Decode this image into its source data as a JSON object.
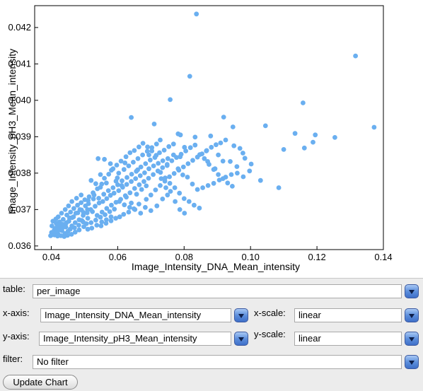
{
  "chart_data": {
    "type": "scatter",
    "title": "",
    "xlabel": "Image_Intensity_DNA_Mean_intensity",
    "ylabel": "Image_Intensity_pH3_Mean_intensity",
    "xlim": [
      0.035,
      0.14
    ],
    "ylim": [
      0.0359,
      0.0426
    ],
    "xticks": [
      0.04,
      0.06,
      0.08,
      0.1,
      0.12,
      0.14
    ],
    "xtick_labels": [
      "0.04",
      "0.06",
      "0.08",
      "0.10",
      "0.12",
      "0.14"
    ],
    "yticks": [
      0.036,
      0.037,
      0.038,
      0.039,
      0.04,
      0.041,
      0.042
    ],
    "ytick_labels": [
      "0.036",
      "0.037",
      "0.038",
      "0.039",
      "0.040",
      "0.041",
      "0.042"
    ],
    "grid": false,
    "point_color": "#6aaff0",
    "points": [
      [
        0.0837,
        0.04237
      ],
      [
        0.1316,
        0.04122
      ],
      [
        0.0817,
        0.04066
      ],
      [
        0.0758,
        0.04002
      ],
      [
        0.1158,
        0.03993
      ],
      [
        0.1372,
        0.03926
      ],
      [
        0.1254,
        0.03898
      ],
      [
        0.1045,
        0.0393
      ],
      [
        0.0641,
        0.03953
      ],
      [
        0.071,
        0.03935
      ],
      [
        0.0782,
        0.03908
      ],
      [
        0.0789,
        0.03905
      ],
      [
        0.088,
        0.03902
      ],
      [
        0.0919,
        0.03954
      ],
      [
        0.0947,
        0.03927
      ],
      [
        0.11,
        0.03865
      ],
      [
        0.1134,
        0.03909
      ],
      [
        0.1195,
        0.03905
      ],
      [
        0.1162,
        0.03869
      ],
      [
        0.1188,
        0.03885
      ],
      [
        0.1085,
        0.0376
      ],
      [
        0.103,
        0.0378
      ],
      [
        0.0977,
        0.03855
      ],
      [
        0.0939,
        0.03832
      ],
      [
        0.0903,
        0.0385
      ],
      [
        0.0867,
        0.03861
      ],
      [
        0.0833,
        0.03899
      ],
      [
        0.0801,
        0.03871
      ],
      [
        0.0788,
        0.03845
      ],
      [
        0.0749,
        0.03821
      ],
      [
        0.0728,
        0.03891
      ],
      [
        0.0694,
        0.0385
      ],
      [
        0.066,
        0.03809
      ],
      [
        0.0622,
        0.03828
      ],
      [
        0.0599,
        0.03787
      ],
      [
        0.0581,
        0.03808
      ],
      [
        0.0566,
        0.03773
      ],
      [
        0.0548,
        0.03761
      ],
      [
        0.0529,
        0.0374
      ],
      [
        0.0511,
        0.03725
      ],
      [
        0.0503,
        0.0371
      ],
      [
        0.0491,
        0.03699
      ],
      [
        0.048,
        0.03691
      ],
      [
        0.0467,
        0.0368
      ],
      [
        0.0455,
        0.03677
      ],
      [
        0.0446,
        0.03664
      ],
      [
        0.0437,
        0.03659
      ],
      [
        0.0428,
        0.03652
      ],
      [
        0.0418,
        0.03647
      ],
      [
        0.0409,
        0.03643
      ],
      [
        0.0401,
        0.03637
      ],
      [
        0.0398,
        0.03628
      ],
      [
        0.0405,
        0.03631
      ],
      [
        0.0411,
        0.03648
      ],
      [
        0.042,
        0.03633
      ],
      [
        0.0432,
        0.03642
      ],
      [
        0.0441,
        0.03634
      ],
      [
        0.045,
        0.0364
      ],
      [
        0.0462,
        0.03655
      ],
      [
        0.0472,
        0.03664
      ],
      [
        0.0484,
        0.03672
      ],
      [
        0.0496,
        0.03684
      ],
      [
        0.0508,
        0.03691
      ],
      [
        0.0519,
        0.037
      ],
      [
        0.0532,
        0.03709
      ],
      [
        0.0544,
        0.03718
      ],
      [
        0.0555,
        0.03722
      ],
      [
        0.0567,
        0.0373
      ],
      [
        0.0578,
        0.03739
      ],
      [
        0.0589,
        0.03745
      ],
      [
        0.0603,
        0.03752
      ],
      [
        0.0615,
        0.03761
      ],
      [
        0.0627,
        0.03769
      ],
      [
        0.0641,
        0.03777
      ],
      [
        0.0654,
        0.03785
      ],
      [
        0.0668,
        0.03793
      ],
      [
        0.0681,
        0.03801
      ],
      [
        0.0694,
        0.03812
      ],
      [
        0.0708,
        0.0382
      ],
      [
        0.0722,
        0.03827
      ],
      [
        0.0736,
        0.03834
      ],
      [
        0.0751,
        0.0384
      ],
      [
        0.0768,
        0.0385
      ],
      [
        0.0782,
        0.03812
      ],
      [
        0.0796,
        0.03795
      ],
      [
        0.081,
        0.03789
      ],
      [
        0.0825,
        0.0377
      ],
      [
        0.084,
        0.03755
      ],
      [
        0.0856,
        0.0376
      ],
      [
        0.0872,
        0.03766
      ],
      [
        0.0889,
        0.03772
      ],
      [
        0.0906,
        0.03781
      ],
      [
        0.0925,
        0.03789
      ],
      [
        0.0942,
        0.03796
      ],
      [
        0.096,
        0.038
      ],
      [
        0.0978,
        0.0379
      ],
      [
        0.0997,
        0.03806
      ],
      [
        0.0871,
        0.03832
      ],
      [
        0.0893,
        0.03812
      ],
      [
        0.0917,
        0.03833
      ],
      [
        0.075,
        0.0374
      ],
      [
        0.0735,
        0.03729
      ],
      [
        0.0718,
        0.0371
      ],
      [
        0.07,
        0.03697
      ],
      [
        0.0683,
        0.03706
      ],
      [
        0.0664,
        0.03715
      ],
      [
        0.0649,
        0.03702
      ],
      [
        0.0633,
        0.03693
      ],
      [
        0.0618,
        0.03687
      ],
      [
        0.0606,
        0.0368
      ],
      [
        0.0594,
        0.03676
      ],
      [
        0.058,
        0.03669
      ],
      [
        0.0565,
        0.03662
      ],
      [
        0.055,
        0.03655
      ],
      [
        0.0537,
        0.03657
      ],
      [
        0.0522,
        0.03649
      ],
      [
        0.051,
        0.03646
      ],
      [
        0.0498,
        0.03653
      ],
      [
        0.0484,
        0.03644
      ],
      [
        0.0472,
        0.03638
      ],
      [
        0.0461,
        0.03632
      ],
      [
        0.0449,
        0.03629
      ],
      [
        0.0439,
        0.03626
      ],
      [
        0.0429,
        0.03628
      ],
      [
        0.0419,
        0.03627
      ],
      [
        0.041,
        0.0363
      ],
      [
        0.0415,
        0.03662
      ],
      [
        0.0425,
        0.03666
      ],
      [
        0.0436,
        0.03673
      ],
      [
        0.0447,
        0.03685
      ],
      [
        0.0458,
        0.03693
      ],
      [
        0.0468,
        0.03703
      ],
      [
        0.0479,
        0.03712
      ],
      [
        0.049,
        0.03719
      ],
      [
        0.0501,
        0.03727
      ],
      [
        0.0514,
        0.03735
      ],
      [
        0.0526,
        0.03746
      ],
      [
        0.0539,
        0.03757
      ],
      [
        0.0552,
        0.0377
      ],
      [
        0.056,
        0.03786
      ],
      [
        0.0573,
        0.03797
      ],
      [
        0.0586,
        0.03812
      ],
      [
        0.0597,
        0.03822
      ],
      [
        0.061,
        0.03833
      ],
      [
        0.0625,
        0.03845
      ],
      [
        0.0637,
        0.03856
      ],
      [
        0.065,
        0.03862
      ],
      [
        0.0664,
        0.03872
      ],
      [
        0.0676,
        0.03882
      ],
      [
        0.069,
        0.03872
      ],
      [
        0.0703,
        0.03861
      ],
      [
        0.0716,
        0.03849
      ],
      [
        0.0729,
        0.03802
      ],
      [
        0.0743,
        0.03787
      ],
      [
        0.0757,
        0.03772
      ],
      [
        0.0772,
        0.0376
      ],
      [
        0.0786,
        0.03745
      ],
      [
        0.08,
        0.0373
      ],
      [
        0.0815,
        0.03722
      ],
      [
        0.083,
        0.03712
      ],
      [
        0.0846,
        0.03704
      ],
      [
        0.0541,
        0.0384
      ],
      [
        0.056,
        0.03838
      ],
      [
        0.0578,
        0.03826
      ],
      [
        0.0595,
        0.03778
      ],
      [
        0.0612,
        0.03766
      ],
      [
        0.0626,
        0.03734
      ],
      [
        0.0641,
        0.03718
      ],
      [
        0.0657,
        0.03742
      ],
      [
        0.0672,
        0.03755
      ],
      [
        0.0686,
        0.03765
      ],
      [
        0.052,
        0.0378
      ],
      [
        0.0534,
        0.03771
      ],
      [
        0.0548,
        0.03796
      ],
      [
        0.049,
        0.0374
      ],
      [
        0.0476,
        0.03731
      ],
      [
        0.0462,
        0.03722
      ],
      [
        0.0452,
        0.0371
      ],
      [
        0.0442,
        0.037
      ],
      [
        0.0431,
        0.0369
      ],
      [
        0.0421,
        0.0368
      ],
      [
        0.0414,
        0.03674
      ],
      [
        0.0405,
        0.03668
      ],
      [
        0.0402,
        0.03655
      ],
      [
        0.0408,
        0.0364
      ],
      [
        0.0553,
        0.03693
      ],
      [
        0.0567,
        0.03703
      ],
      [
        0.0581,
        0.03712
      ],
      [
        0.0595,
        0.0372
      ],
      [
        0.0609,
        0.03728
      ],
      [
        0.0623,
        0.03738
      ],
      [
        0.0637,
        0.03746
      ],
      [
        0.0651,
        0.03758
      ],
      [
        0.0665,
        0.03768
      ],
      [
        0.0679,
        0.03777
      ],
      [
        0.0693,
        0.03786
      ],
      [
        0.0707,
        0.03796
      ],
      [
        0.0721,
        0.03806
      ],
      [
        0.0735,
        0.03815
      ],
      [
        0.0749,
        0.03824
      ],
      [
        0.0763,
        0.03834
      ],
      [
        0.0777,
        0.03843
      ],
      [
        0.0791,
        0.03852
      ],
      [
        0.0805,
        0.03861
      ],
      [
        0.0819,
        0.0387
      ],
      [
        0.0833,
        0.03877
      ],
      [
        0.0847,
        0.03851
      ],
      [
        0.0861,
        0.0384
      ],
      [
        0.0875,
        0.03824
      ],
      [
        0.0889,
        0.0381
      ],
      [
        0.0903,
        0.03796
      ],
      [
        0.0917,
        0.03785
      ],
      [
        0.0931,
        0.03773
      ],
      [
        0.0945,
        0.03764
      ],
      [
        0.0959,
        0.03818
      ],
      [
        0.0983,
        0.03841
      ],
      [
        0.059,
        0.03701
      ],
      [
        0.0576,
        0.03694
      ],
      [
        0.0562,
        0.03686
      ],
      [
        0.0548,
        0.03679
      ],
      [
        0.0534,
        0.03671
      ],
      [
        0.052,
        0.03664
      ],
      [
        0.0506,
        0.03661
      ],
      [
        0.0492,
        0.0367
      ],
      [
        0.0512,
        0.03716
      ],
      [
        0.0527,
        0.03729
      ],
      [
        0.0543,
        0.03731
      ],
      [
        0.0558,
        0.03742
      ],
      [
        0.0572,
        0.03752
      ],
      [
        0.0586,
        0.0376
      ],
      [
        0.06,
        0.03768
      ],
      [
        0.0613,
        0.03779
      ],
      [
        0.0628,
        0.03788
      ],
      [
        0.0642,
        0.03797
      ],
      [
        0.0656,
        0.03805
      ],
      [
        0.067,
        0.03817
      ],
      [
        0.0684,
        0.03826
      ],
      [
        0.0698,
        0.03836
      ],
      [
        0.0712,
        0.03843
      ],
      [
        0.0726,
        0.03856
      ],
      [
        0.074,
        0.03863
      ],
      [
        0.0754,
        0.03873
      ],
      [
        0.0768,
        0.0388
      ],
      [
        0.0509,
        0.037
      ],
      [
        0.0497,
        0.03692
      ],
      [
        0.0486,
        0.037
      ],
      [
        0.0474,
        0.0369
      ],
      [
        0.0463,
        0.03678
      ],
      [
        0.0453,
        0.03668
      ],
      [
        0.0443,
        0.0366
      ],
      [
        0.0433,
        0.03649
      ],
      [
        0.0424,
        0.03644
      ],
      [
        0.0417,
        0.03639
      ],
      [
        0.0603,
        0.038
      ],
      [
        0.0619,
        0.0381
      ],
      [
        0.0633,
        0.0382
      ],
      [
        0.0647,
        0.0383
      ],
      [
        0.0661,
        0.0384
      ],
      [
        0.0675,
        0.0385
      ],
      [
        0.0689,
        0.0386
      ],
      [
        0.0703,
        0.0387
      ],
      [
        0.0717,
        0.0388
      ],
      [
        0.0731,
        0.03785
      ],
      [
        0.0745,
        0.0376
      ],
      [
        0.0759,
        0.0375
      ],
      [
        0.0773,
        0.03722
      ],
      [
        0.0787,
        0.037
      ],
      [
        0.0801,
        0.0369
      ],
      [
        0.058,
        0.0368
      ],
      [
        0.0566,
        0.03672
      ],
      [
        0.0552,
        0.03666
      ],
      [
        0.0538,
        0.03684
      ],
      [
        0.0524,
        0.03694
      ],
      [
        0.051,
        0.03676
      ],
      [
        0.0496,
        0.03666
      ],
      [
        0.0483,
        0.03657
      ],
      [
        0.047,
        0.0365
      ],
      [
        0.0457,
        0.03646
      ],
      [
        0.0444,
        0.03652
      ],
      [
        0.0431,
        0.0366
      ],
      [
        0.0418,
        0.03656
      ],
      [
        0.0605,
        0.03722
      ],
      [
        0.062,
        0.03713
      ],
      [
        0.0636,
        0.03706
      ],
      [
        0.0652,
        0.037
      ],
      [
        0.0669,
        0.0369
      ],
      [
        0.0686,
        0.03728
      ],
      [
        0.07,
        0.0374
      ],
      [
        0.0714,
        0.03754
      ],
      [
        0.0728,
        0.03766
      ],
      [
        0.0742,
        0.03778
      ],
      [
        0.0756,
        0.0379
      ],
      [
        0.077,
        0.03799
      ],
      [
        0.0784,
        0.03808
      ],
      [
        0.0798,
        0.03817
      ],
      [
        0.0812,
        0.03826
      ],
      [
        0.0826,
        0.03835
      ],
      [
        0.084,
        0.03844
      ],
      [
        0.0854,
        0.03853
      ],
      [
        0.0868,
        0.03862
      ],
      [
        0.0882,
        0.03871
      ],
      [
        0.0896,
        0.03878
      ],
      [
        0.091,
        0.03883
      ],
      [
        0.0925,
        0.03891
      ],
      [
        0.095,
        0.03875
      ],
      [
        0.0968,
        0.03868
      ],
      [
        0.1002,
        0.03825
      ]
    ]
  },
  "controls": {
    "table_label": "table:",
    "table_value": "per_image",
    "x_axis_label": "x-axis:",
    "x_axis_value": "Image_Intensity_DNA_Mean_intensity",
    "x_scale_label": "x-scale:",
    "x_scale_value": "linear",
    "y_axis_label": "y-axis:",
    "y_axis_value": "Image_Intensity_pH3_Mean_intensity",
    "y_scale_label": "y-scale:",
    "y_scale_value": "linear",
    "filter_label": "filter:",
    "filter_value": "No filter",
    "update_label": "Update Chart",
    "dropdown_icon": "chevron-down-icon"
  }
}
